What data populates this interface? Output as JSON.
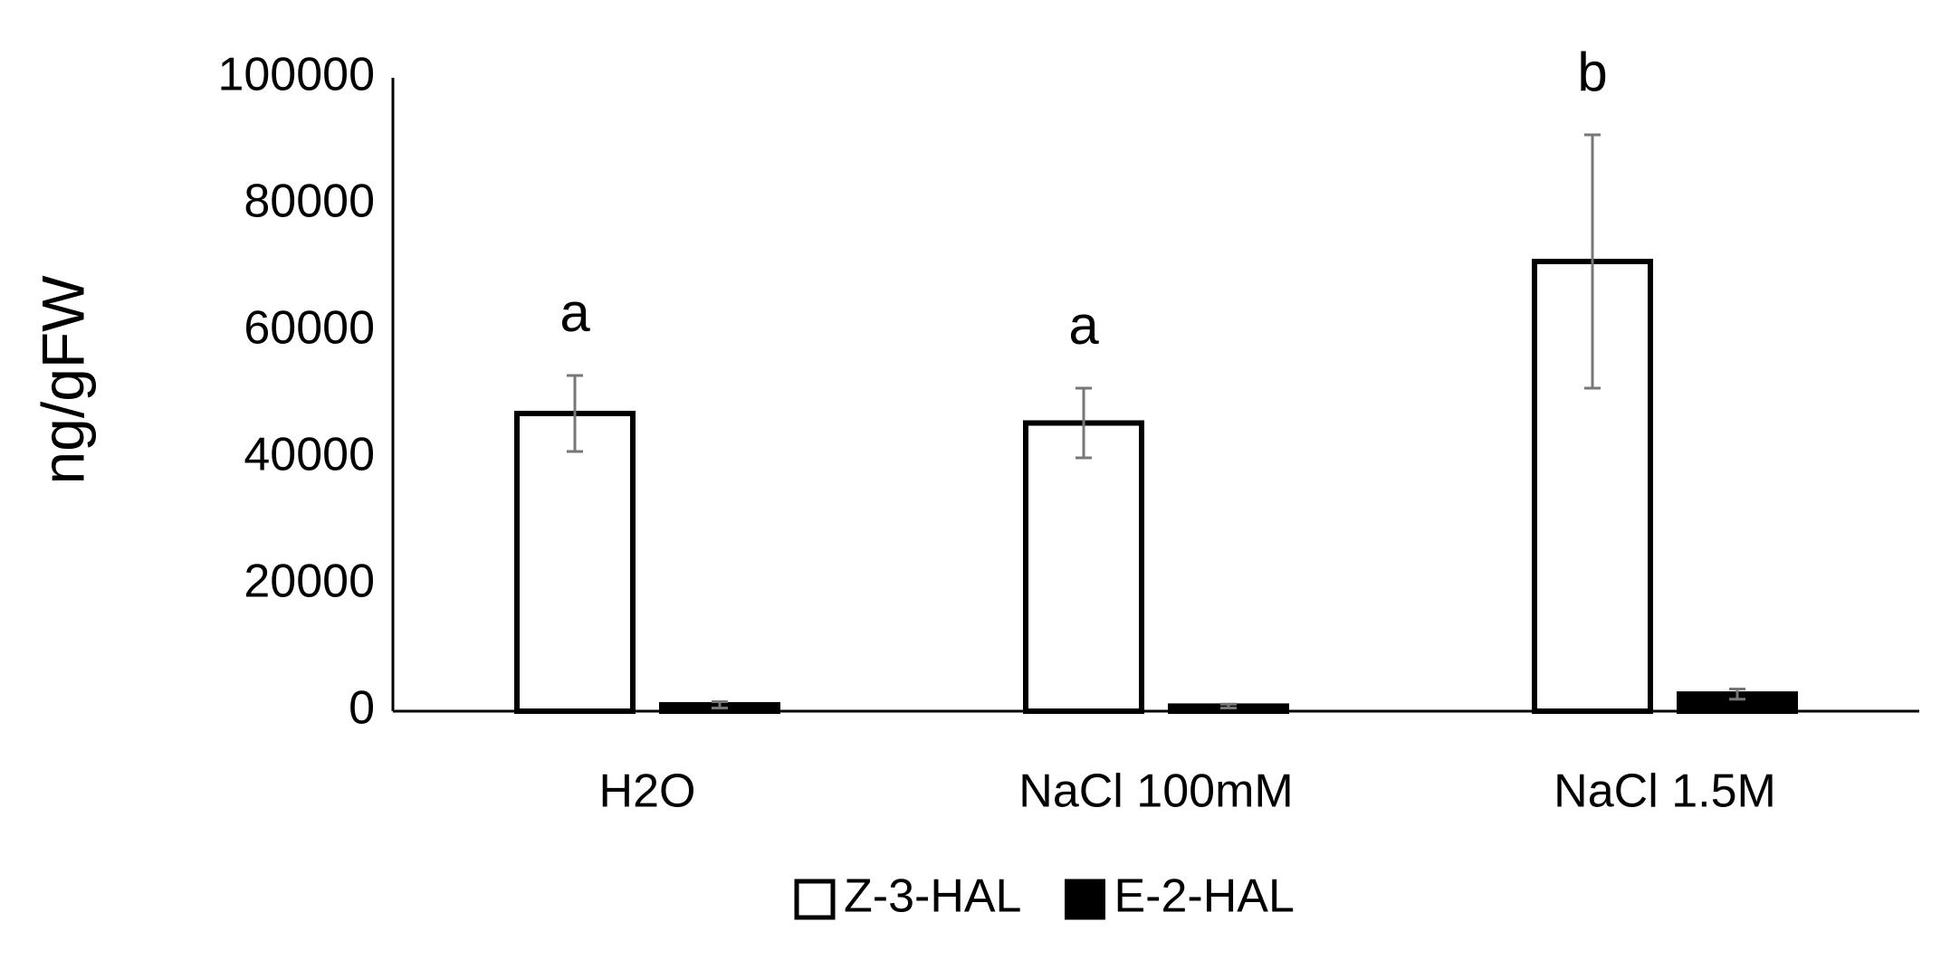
{
  "chart_data": {
    "type": "bar",
    "y_label": "ng/gFW",
    "categories": [
      "H2O",
      "NaCl 100mM",
      "NaCl 1.5M"
    ],
    "series": [
      {
        "name": "Z-3-HAL",
        "color": "#ffffff",
        "values": [
          47000,
          45500,
          71000
        ],
        "errors": [
          6000,
          5500,
          20000
        ]
      },
      {
        "name": "E-2-HAL",
        "color": "#000000",
        "values": [
          1000,
          800,
          2700
        ],
        "errors": [
          500,
          300,
          800
        ]
      }
    ],
    "annotations": [
      "a",
      "a",
      "b"
    ],
    "ylim": [
      0,
      100000
    ],
    "yticks": [
      0,
      20000,
      40000,
      60000,
      80000,
      100000
    ],
    "grid": false,
    "legend": "bottom"
  }
}
